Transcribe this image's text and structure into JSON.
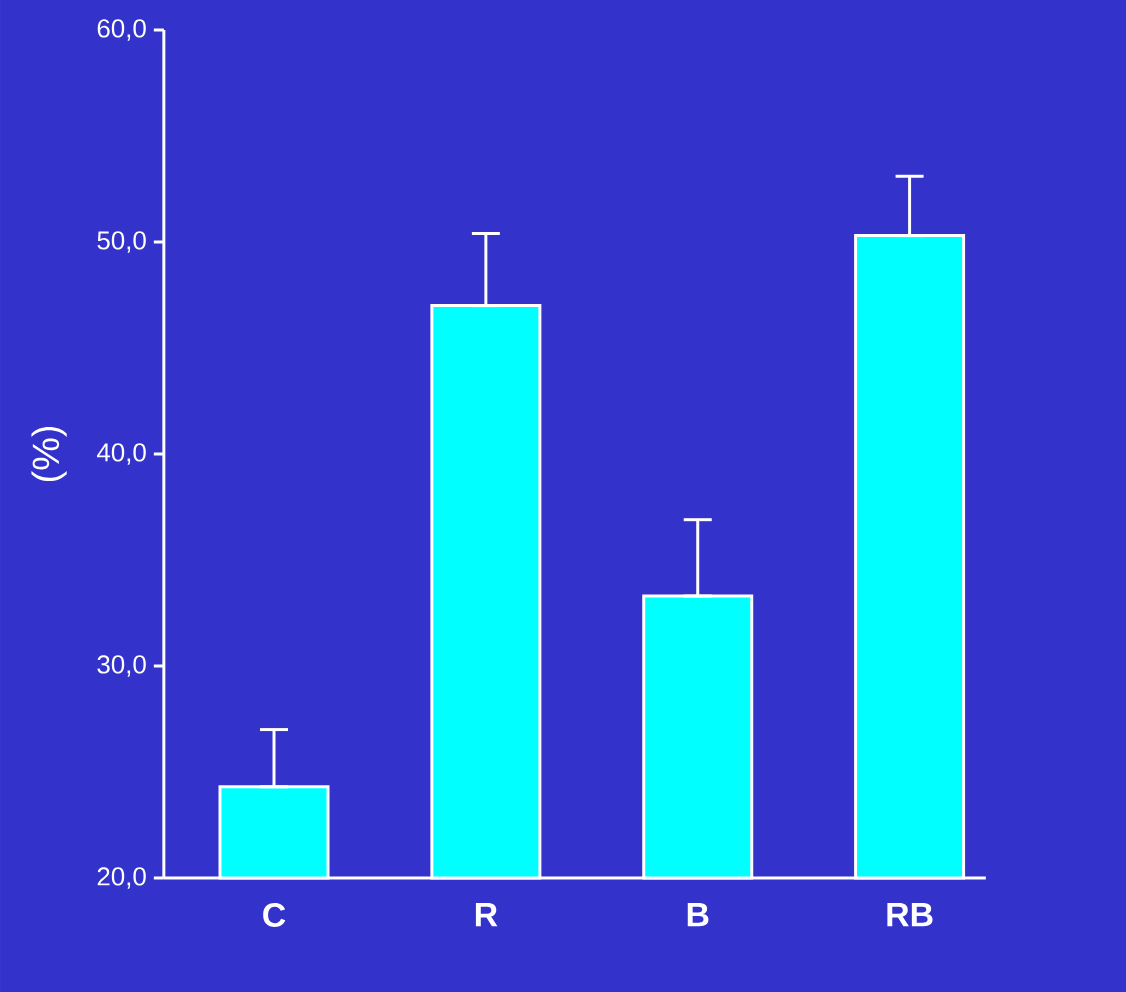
{
  "chart_data": {
    "type": "bar",
    "ylabel": "(%)",
    "categories": [
      "C",
      "R",
      "B",
      "RB"
    ],
    "values": [
      24.3,
      47.0,
      33.3,
      50.3
    ],
    "errors": [
      [
        24.3,
        27.0
      ],
      [
        47.0,
        50.4
      ],
      [
        33.3,
        36.9
      ],
      [
        50.3,
        53.1
      ]
    ],
    "color": "#00ffff",
    "ylim": [
      20,
      60
    ],
    "yticks": [
      {
        "value": 20,
        "label": "20,0"
      },
      {
        "value": 30,
        "label": "30,0"
      },
      {
        "value": 40,
        "label": "40,0"
      },
      {
        "value": 50,
        "label": "50,0"
      },
      {
        "value": 60,
        "label": "60,0"
      }
    ],
    "grid": false
  }
}
